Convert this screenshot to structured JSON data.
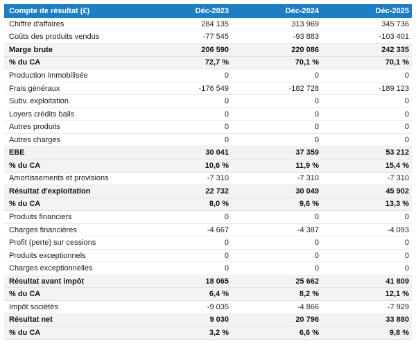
{
  "table": {
    "title": "Compte de résultat (£)",
    "header": {
      "label": "Compte de résultat (£)",
      "columns": [
        "Déc-2023",
        "Déc-2024",
        "Déc-2025"
      ]
    },
    "rows": [
      {
        "label": "Chiffre d'affaires",
        "values": [
          "284 135",
          "313 969",
          "345 736"
        ],
        "bold": false
      },
      {
        "label": "Coûts des produits vendus",
        "values": [
          "-77 545",
          "-93 883",
          "-103 401"
        ],
        "bold": false
      },
      {
        "label": "Marge brute",
        "values": [
          "206 590",
          "220 086",
          "242 335"
        ],
        "bold": true
      },
      {
        "label": "% du CA",
        "values": [
          "72,7 %",
          "70,1 %",
          "70,1 %"
        ],
        "bold": true
      },
      {
        "label": "Production immobilisée",
        "values": [
          "0",
          "0",
          "0"
        ],
        "bold": false
      },
      {
        "label": "Frais généraux",
        "values": [
          "-176 549",
          "-182 728",
          "-189 123"
        ],
        "bold": false
      },
      {
        "label": "Subv. exploitation",
        "values": [
          "0",
          "0",
          "0"
        ],
        "bold": false
      },
      {
        "label": "Loyers crédits bails",
        "values": [
          "0",
          "0",
          "0"
        ],
        "bold": false
      },
      {
        "label": "Autres produits",
        "values": [
          "0",
          "0",
          "0"
        ],
        "bold": false
      },
      {
        "label": "Autres charges",
        "values": [
          "0",
          "0",
          "0"
        ],
        "bold": false
      },
      {
        "label": "EBE",
        "values": [
          "30 041",
          "37 359",
          "53 212"
        ],
        "bold": true
      },
      {
        "label": "% du CA",
        "values": [
          "10,6 %",
          "11,9 %",
          "15,4 %"
        ],
        "bold": true
      },
      {
        "label": "Amortissements et provisions",
        "values": [
          "-7 310",
          "-7 310",
          "-7 310"
        ],
        "bold": false
      },
      {
        "label": "Résultat d'exploitation",
        "values": [
          "22 732",
          "30 049",
          "45 902"
        ],
        "bold": true
      },
      {
        "label": "% du CA",
        "values": [
          "8,0 %",
          "9,6 %",
          "13,3 %"
        ],
        "bold": true
      },
      {
        "label": "Produits financiers",
        "values": [
          "0",
          "0",
          "0"
        ],
        "bold": false
      },
      {
        "label": "Charges financières",
        "values": [
          "-4 667",
          "-4 387",
          "-4 093"
        ],
        "bold": false
      },
      {
        "label": "Profit (perte) sur cessions",
        "values": [
          "0",
          "0",
          "0"
        ],
        "bold": false
      },
      {
        "label": "Produits exceptionnels",
        "values": [
          "0",
          "0",
          "0"
        ],
        "bold": false
      },
      {
        "label": "Charges exceptionnelles",
        "values": [
          "0",
          "0",
          "0"
        ],
        "bold": false
      },
      {
        "label": "Résultat avant impôt",
        "values": [
          "18 065",
          "25 662",
          "41 809"
        ],
        "bold": true
      },
      {
        "label": "% du CA",
        "values": [
          "6,4 %",
          "8,2 %",
          "12,1 %"
        ],
        "bold": true
      },
      {
        "label": "Impôt sociétés",
        "values": [
          "-9 035",
          "-4 866",
          "-7 929"
        ],
        "bold": false
      },
      {
        "label": "Résultat net",
        "values": [
          "9 030",
          "20 796",
          "33 880"
        ],
        "bold": true
      },
      {
        "label": "% du CA",
        "values": [
          "3,2 %",
          "6,6 %",
          "9,8 %"
        ],
        "bold": true
      }
    ],
    "colors": {
      "header_bg": "#1e7ec4",
      "header_text": "#ffffff",
      "shaded_row_bg": "#f3f3f3",
      "row_border": "#ececec",
      "text": "#1c1c1c"
    }
  }
}
